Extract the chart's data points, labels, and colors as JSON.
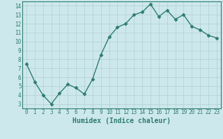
{
  "xlabel": "Humidex (Indice chaleur)",
  "x": [
    0,
    1,
    2,
    3,
    4,
    5,
    6,
    7,
    8,
    9,
    10,
    11,
    12,
    13,
    14,
    15,
    16,
    17,
    18,
    19,
    20,
    21,
    22,
    23
  ],
  "y": [
    7.5,
    5.5,
    4.0,
    3.0,
    4.2,
    5.2,
    4.8,
    4.1,
    5.8,
    8.5,
    10.5,
    11.6,
    12.0,
    13.0,
    13.3,
    14.2,
    12.8,
    13.5,
    12.5,
    13.0,
    11.7,
    11.3,
    10.7,
    10.4
  ],
  "line_color": "#2e7d6e",
  "marker": "D",
  "marker_size": 2.5,
  "bg_color": "#cde8ec",
  "grid_color": "#b0cfd4",
  "ylim": [
    2.5,
    14.5
  ],
  "xlim": [
    -0.5,
    23.5
  ],
  "yticks": [
    3,
    4,
    5,
    6,
    7,
    8,
    9,
    10,
    11,
    12,
    13,
    14
  ],
  "xticks": [
    0,
    1,
    2,
    3,
    4,
    5,
    6,
    7,
    8,
    9,
    10,
    11,
    12,
    13,
    14,
    15,
    16,
    17,
    18,
    19,
    20,
    21,
    22,
    23
  ],
  "tick_label_fontsize": 5.5,
  "xlabel_fontsize": 7.0,
  "line_width": 1.0
}
